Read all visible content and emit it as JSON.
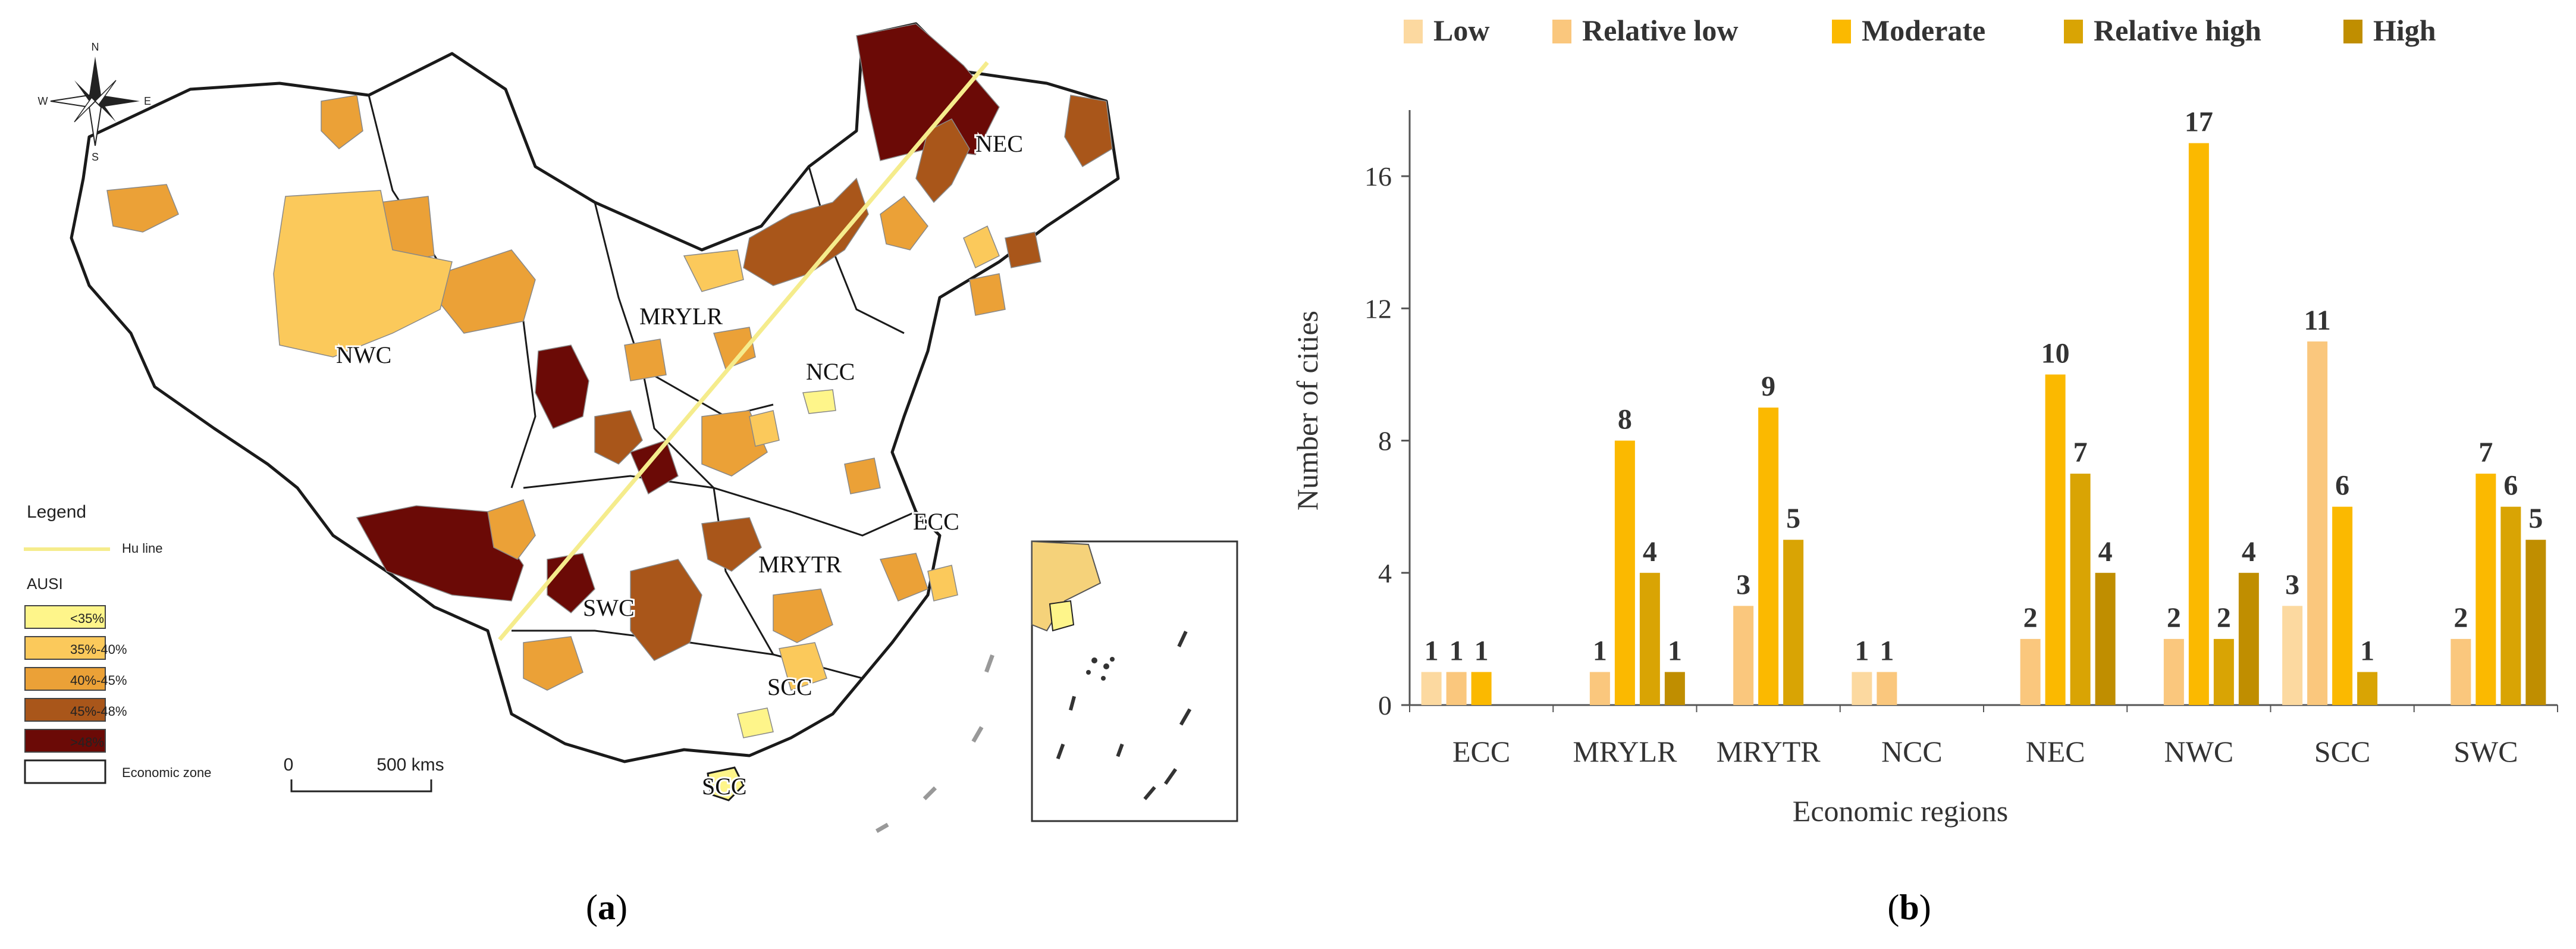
{
  "panels": {
    "a": {
      "caption_letter": "a",
      "map_region_labels": [
        "NEC",
        "MRYLR",
        "NWC",
        "NCC",
        "ECC",
        "MRYTR",
        "SWC",
        "SCC",
        "SCC"
      ],
      "legend": {
        "title": "Legend",
        "hu_line_label": "Hu line",
        "index_title": "AUSI",
        "classes": [
          {
            "label": "<35%",
            "color": "#fef58a"
          },
          {
            "label": "35%-40%",
            "color": "#fbc95b"
          },
          {
            "label": "40%-45%",
            "color": "#eba137"
          },
          {
            "label": "45%-48%",
            "color": "#a9561a"
          },
          {
            "label": ">48%",
            "color": "#6b0a06"
          }
        ],
        "zone_label": "Economic zone"
      },
      "scale_bar": {
        "start": "0",
        "end": "500 kms"
      },
      "compass": {
        "n": "N",
        "s": "S",
        "e": "E",
        "w": "W"
      },
      "colors": {
        "hu_line": "#f5ec8c",
        "outline": "#1a1a1a",
        "city_border": "#bbbbbb"
      }
    },
    "b": {
      "caption_letter": "b",
      "chart_data": {
        "type": "bar",
        "title": "",
        "xlabel": "Economic regions",
        "ylabel": "Number of cities",
        "ylim": [
          0,
          18
        ],
        "yticks": [
          0,
          4,
          8,
          12,
          16
        ],
        "categories": [
          "ECC",
          "MRYLR",
          "MRYTR",
          "NCC",
          "NEC",
          "NWC",
          "SCC",
          "SWC"
        ],
        "legend_position": "top",
        "series": [
          {
            "name": "Low",
            "color": "#fcd9a0",
            "values": [
              1,
              null,
              null,
              1,
              null,
              null,
              3,
              null
            ]
          },
          {
            "name": "Relative low",
            "color": "#fac77d",
            "values": [
              1,
              1,
              3,
              1,
              2,
              2,
              11,
              2
            ]
          },
          {
            "name": "Moderate",
            "color": "#fbb900",
            "values": [
              1,
              8,
              9,
              null,
              10,
              17,
              6,
              7
            ]
          },
          {
            "name": "Relative high",
            "color": "#d9a404",
            "values": [
              null,
              4,
              5,
              null,
              7,
              2,
              1,
              6
            ]
          },
          {
            "name": "High",
            "color": "#c08e00",
            "values": [
              null,
              1,
              null,
              null,
              4,
              4,
              null,
              5
            ]
          }
        ]
      }
    }
  }
}
